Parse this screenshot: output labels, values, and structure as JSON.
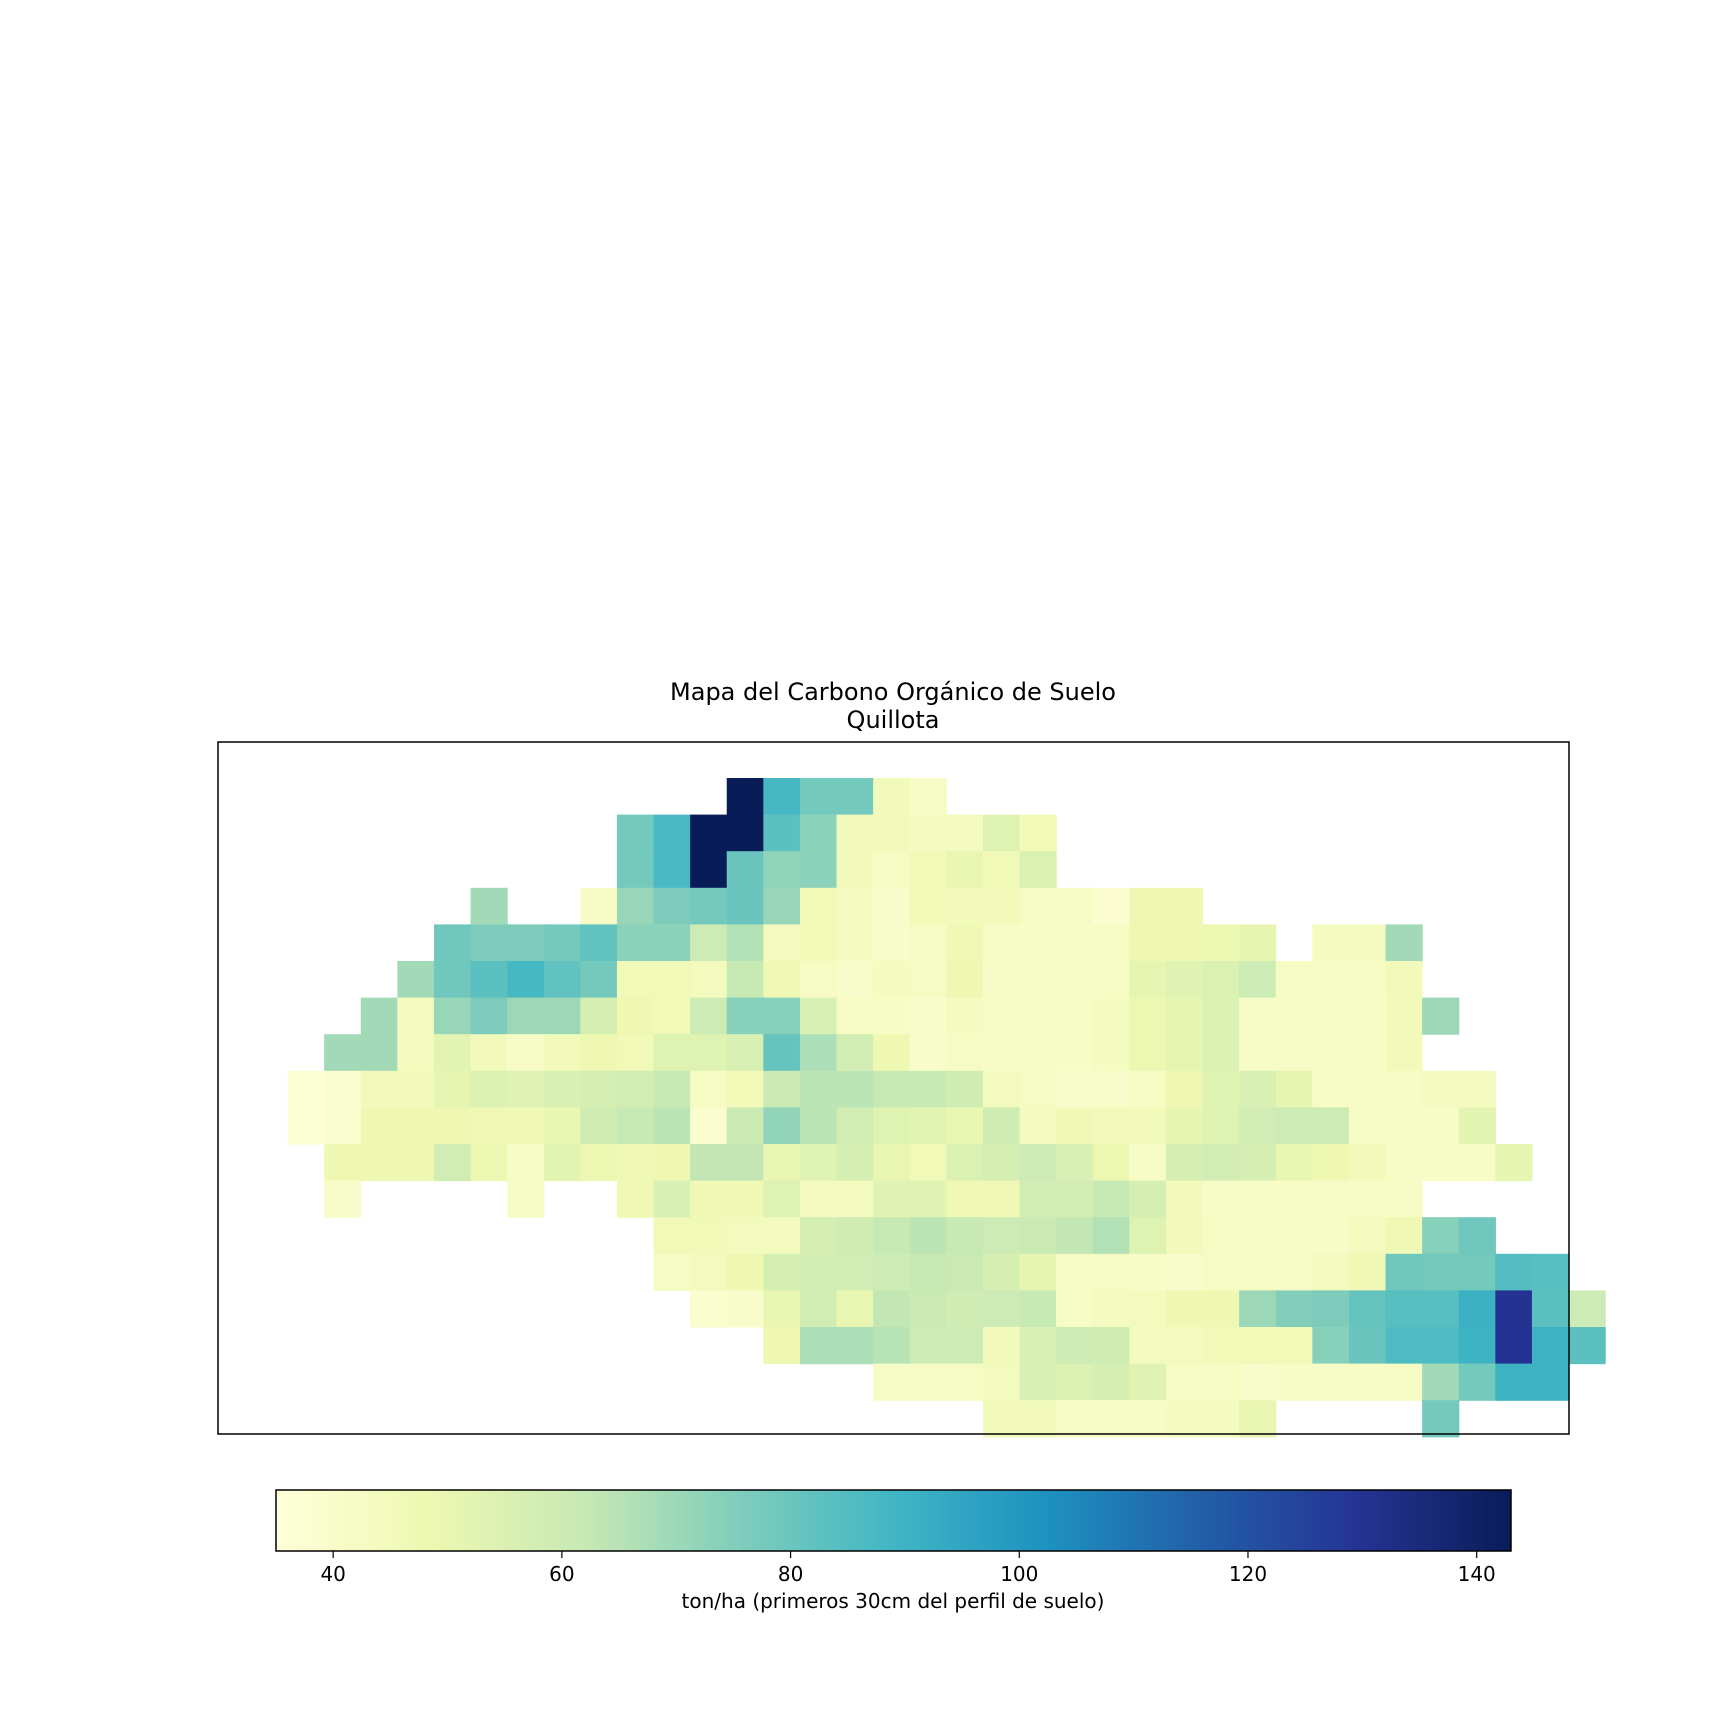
{
  "chart_data": {
    "type": "heatmap",
    "title": "Mapa del Carbono Orgánico de Suelo",
    "subtitle": "Quillota",
    "grid": false,
    "colormap": "YlGnBu",
    "colormap_stops": [
      "#ffffd9",
      "#edf8b1",
      "#c7e9b4",
      "#7fcdbb",
      "#41b6c4",
      "#1d91c0",
      "#225ea8",
      "#253494",
      "#081d58"
    ],
    "vmin": 35,
    "vmax": 143,
    "colorbar": {
      "label": "ton/ha (primeros 30cm del perfil de suelo)",
      "ticks": [
        40,
        60,
        80,
        100,
        120,
        140
      ],
      "tick_labels": [
        "40",
        "60",
        "80",
        "100",
        "120",
        "140"
      ],
      "placement": "bottom"
    },
    "values": [
      [
        null,
        null,
        null,
        null,
        null,
        null,
        null,
        null,
        null,
        null,
        null,
        null,
        null,
        143,
        88,
        78,
        78,
        45,
        41,
        null,
        null,
        null,
        null,
        null,
        null,
        null,
        null,
        null,
        null,
        null,
        null,
        null,
        null,
        null,
        null,
        null
      ],
      [
        null,
        null,
        null,
        null,
        null,
        null,
        null,
        null,
        null,
        null,
        78,
        87,
        143,
        143,
        83,
        73,
        45,
        45,
        43,
        43,
        54,
        46,
        null,
        null,
        null,
        null,
        null,
        null,
        null,
        null,
        null,
        null,
        null,
        null,
        null,
        null
      ],
      [
        null,
        null,
        null,
        null,
        null,
        null,
        null,
        null,
        null,
        null,
        78,
        87,
        143,
        80,
        72,
        73,
        45,
        42,
        46,
        50,
        46,
        55,
        null,
        null,
        null,
        null,
        null,
        null,
        null,
        null,
        null,
        null,
        null,
        null,
        null,
        null
      ],
      [
        null,
        null,
        null,
        null,
        null,
        null,
        69,
        null,
        null,
        41,
        71,
        76,
        78,
        80,
        71,
        46,
        43,
        40,
        46,
        45,
        45,
        42,
        42,
        38,
        48,
        48,
        null,
        null,
        null,
        null,
        null,
        null,
        null,
        null,
        null,
        null
      ],
      [
        null,
        null,
        null,
        null,
        null,
        79,
        76,
        76,
        78,
        82,
        73,
        73,
        60,
        66,
        44,
        46,
        43,
        40,
        42,
        47,
        41,
        41,
        41,
        42,
        48,
        48,
        49,
        51,
        null,
        43,
        43,
        69,
        null,
        null,
        null,
        null
      ],
      [
        null,
        null,
        null,
        null,
        69,
        79,
        83,
        88,
        82,
        78,
        46,
        46,
        44,
        62,
        47,
        42,
        40,
        43,
        42,
        48,
        41,
        41,
        41,
        42,
        51,
        53,
        55,
        60,
        42,
        42,
        42,
        45,
        null,
        null,
        null,
        null
      ],
      [
        null,
        null,
        null,
        69,
        44,
        71,
        76,
        70,
        70,
        57,
        48,
        46,
        60,
        74,
        74,
        56,
        42,
        41,
        40,
        43,
        41,
        41,
        41,
        43,
        49,
        51,
        55,
        41,
        41,
        41,
        41,
        45,
        70,
        null,
        null,
        null
      ],
      [
        null,
        null,
        69,
        69,
        44,
        52,
        45,
        41,
        45,
        48,
        46,
        54,
        54,
        56,
        81,
        67,
        58,
        48,
        40,
        42,
        41,
        41,
        41,
        43,
        49,
        51,
        55,
        41,
        41,
        41,
        41,
        45,
        null,
        null,
        null,
        null
      ],
      [
        null,
        37,
        39,
        45,
        45,
        51,
        55,
        53,
        56,
        57,
        58,
        62,
        42,
        46,
        61,
        64,
        64,
        62,
        62,
        59,
        44,
        42,
        40,
        40,
        42,
        48,
        54,
        56,
        51,
        41,
        41,
        41,
        43,
        43,
        null,
        null
      ],
      [
        null,
        37,
        39,
        48,
        48,
        48,
        47,
        47,
        50,
        59,
        62,
        64,
        39,
        61,
        72,
        64,
        58,
        54,
        52,
        50,
        59,
        43,
        47,
        45,
        45,
        51,
        54,
        58,
        60,
        60,
        41,
        41,
        41,
        52,
        null,
        null
      ],
      [
        null,
        null,
        48,
        48,
        48,
        58,
        49,
        41,
        52,
        49,
        47,
        48,
        63,
        63,
        50,
        54,
        57,
        50,
        46,
        55,
        57,
        60,
        56,
        49,
        41,
        57,
        58,
        57,
        50,
        48,
        45,
        41,
        41,
        41,
        51,
        null
      ],
      [
        null,
        null,
        40,
        null,
        null,
        null,
        null,
        41,
        null,
        null,
        47,
        56,
        47,
        47,
        54,
        44,
        44,
        53,
        53,
        47,
        47,
        58,
        58,
        62,
        57,
        45,
        41,
        41,
        41,
        41,
        41,
        41,
        null,
        null,
        null
      ],
      [
        null,
        null,
        null,
        null,
        null,
        null,
        null,
        null,
        null,
        null,
        null,
        46,
        46,
        44,
        44,
        57,
        59,
        62,
        64,
        62,
        60,
        61,
        63,
        66,
        54,
        45,
        42,
        41,
        42,
        41,
        44,
        47,
        74,
        79,
        null,
        null
      ],
      [
        null,
        null,
        null,
        null,
        null,
        null,
        null,
        null,
        null,
        null,
        null,
        42,
        44,
        48,
        57,
        58,
        58,
        60,
        62,
        61,
        57,
        51,
        42,
        42,
        41,
        40,
        42,
        42,
        42,
        44,
        47,
        79,
        78,
        78,
        85,
        84,
        null,
        null
      ],
      [
        null,
        null,
        null,
        null,
        null,
        null,
        null,
        null,
        null,
        null,
        null,
        null,
        39,
        40,
        50,
        58,
        50,
        63,
        61,
        59,
        60,
        62,
        41,
        43,
        44,
        48,
        48,
        70,
        75,
        76,
        81,
        84,
        84,
        91,
        130,
        83,
        60
      ],
      [
        null,
        null,
        null,
        null,
        null,
        null,
        null,
        null,
        null,
        null,
        null,
        null,
        null,
        null,
        48,
        67,
        67,
        65,
        60,
        60,
        45,
        56,
        60,
        59,
        44,
        44,
        46,
        46,
        46,
        74,
        80,
        86,
        86,
        90,
        130,
        90,
        83
      ],
      [
        null,
        null,
        null,
        null,
        null,
        null,
        null,
        null,
        null,
        null,
        null,
        null,
        null,
        null,
        null,
        null,
        null,
        41,
        42,
        42,
        44,
        56,
        55,
        57,
        53,
        42,
        42,
        40,
        41,
        41,
        41,
        42,
        69,
        78,
        90,
        90,
        null
      ],
      [
        null,
        null,
        null,
        null,
        null,
        null,
        null,
        null,
        null,
        null,
        null,
        null,
        null,
        null,
        null,
        null,
        null,
        null,
        null,
        null,
        45,
        45,
        41,
        41,
        41,
        43,
        43,
        50,
        null,
        null,
        null,
        null,
        78,
        null,
        null,
        null
      ]
    ]
  }
}
